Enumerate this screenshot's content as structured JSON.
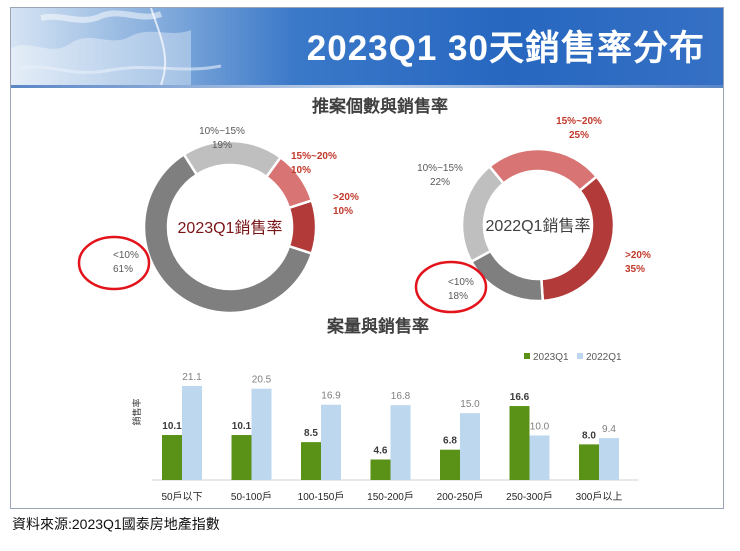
{
  "page_title": "2023Q1 30天銷售率分布",
  "source_note": "資料來源:2023Q1國泰房地產指數",
  "colors": {
    "lt10": "#7f7f7f",
    "r10_15": "#bfbfbf",
    "r15_20": "#d87574",
    "gt20": "#b23b3a",
    "bar2023": "#5a9218",
    "bar2022": "#bdd7ee",
    "highlight": "#e3131b"
  },
  "chart_data": [
    {
      "type": "pie",
      "title": "推案個數與銷售率",
      "series": [
        {
          "name": "2023Q1銷售率",
          "slices": [
            {
              "key": "gt20",
              "label": ">20%",
              "value": 10,
              "text": "10%"
            },
            {
              "key": "lt10",
              "label": "<10%",
              "value": 61,
              "text": "61%"
            },
            {
              "key": "r10_15",
              "label": "10%~15%",
              "value": 19,
              "text": "19%"
            },
            {
              "key": "r15_20",
              "label": "15%~20%",
              "value": 10,
              "text": "10%"
            }
          ]
        },
        {
          "name": "2022Q1銷售率",
          "slices": [
            {
              "key": "gt20",
              "label": ">20%",
              "value": 35,
              "text": "35%"
            },
            {
              "key": "lt10",
              "label": "<10%",
              "value": 18,
              "text": "18%"
            },
            {
              "key": "r10_15",
              "label": "10%~15%",
              "value": 22,
              "text": "22%"
            },
            {
              "key": "r15_20",
              "label": "15%~20%",
              "value": 25,
              "text": "25%"
            }
          ]
        }
      ]
    },
    {
      "type": "bar",
      "title": "案量與銷售率",
      "ylabel": "銷售率",
      "categories": [
        "50戶以下",
        "50-100戶",
        "100-150戶",
        "150-200戶",
        "200-250戶",
        "250-300戶",
        "300戶以上"
      ],
      "series": [
        {
          "name": "2023Q1",
          "values": [
            10.1,
            10.1,
            8.5,
            4.6,
            6.8,
            16.6,
            8.0
          ],
          "labels": [
            "10.1",
            "10.1",
            "8.5",
            "4.6",
            "6.8",
            "16.6",
            "8.0"
          ]
        },
        {
          "name": "2022Q1",
          "values": [
            21.1,
            20.5,
            16.9,
            16.8,
            15.0,
            10.0,
            9.4
          ],
          "labels": [
            "21.1",
            "20.5",
            "16.9",
            "16.8",
            "15.0",
            "10.0",
            "9.4"
          ]
        }
      ],
      "ylim": [
        0,
        22
      ]
    }
  ]
}
